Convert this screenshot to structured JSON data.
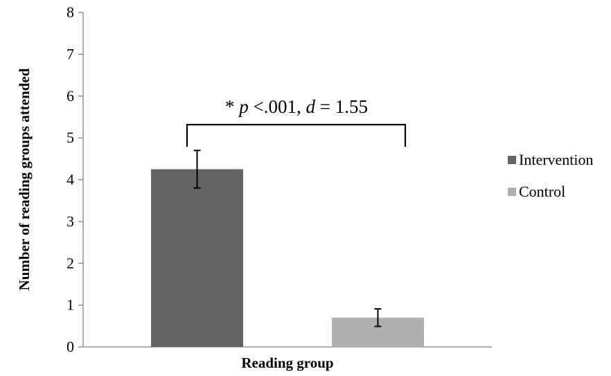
{
  "chart_data": {
    "type": "bar",
    "categories": [
      "Intervention",
      "Control"
    ],
    "values": [
      4.25,
      0.7
    ],
    "error": [
      0.45,
      0.21
    ],
    "xlabel": "Reading group",
    "ylabel": "Number of reading groups attended",
    "ylim": [
      0,
      8
    ],
    "yticks": [
      0,
      1,
      2,
      3,
      4,
      5,
      6,
      7,
      8
    ],
    "grid": false,
    "legend": {
      "position": "right",
      "entries": [
        "Intervention",
        "Control"
      ]
    },
    "colors": {
      "Intervention": "#646464",
      "Control": "#b0b0b0"
    },
    "annotation": {
      "star": "* ",
      "p_symbol": "p",
      "p_text": " <.001, ",
      "d_symbol": "d",
      "d_text": " = 1.55"
    }
  }
}
